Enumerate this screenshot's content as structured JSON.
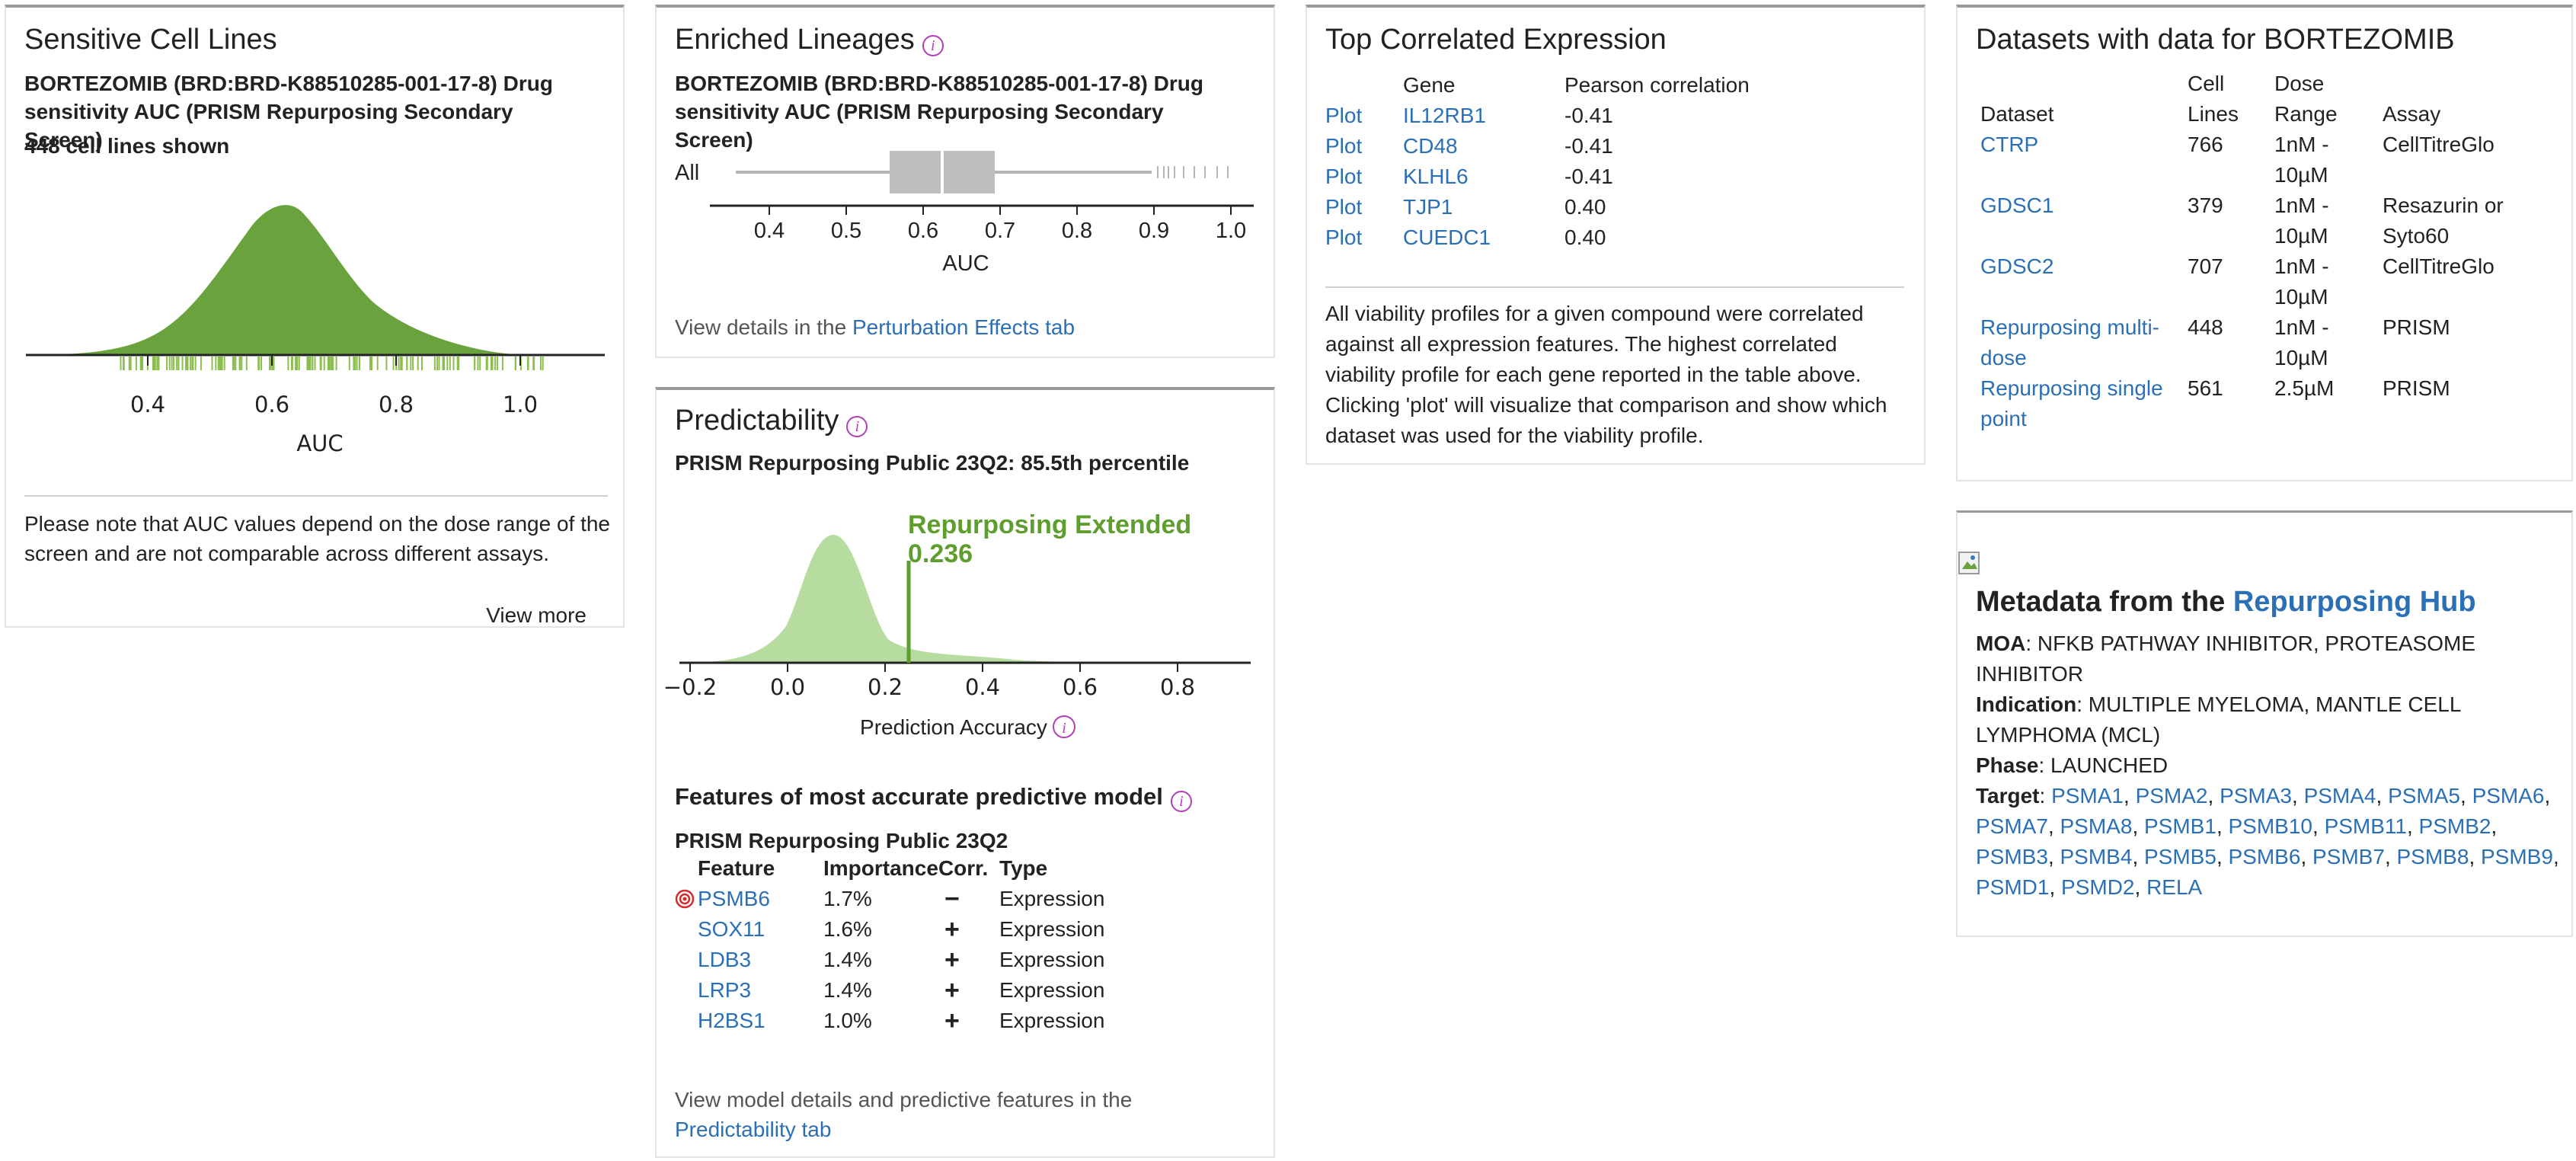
{
  "sensitive": {
    "title": "Sensitive Cell Lines",
    "subtitle": "BORTEZOMIB (BRD:BRD-K88510285-001-17-8) Drug sensitivity AUC (PRISM Repurposing Secondary Screen)",
    "shown": "448 cell lines shown",
    "axis_label": "AUC",
    "ticks": [
      "0.4",
      "0.6",
      "0.8",
      "1.0"
    ],
    "note": "Please note that AUC values depend on the dose range of the screen and are not comparable across different assays.",
    "view_more": "View more",
    "colors": {
      "density": "#6aa33d",
      "rug": "#8cbf4f"
    }
  },
  "lineages": {
    "title": "Enriched Lineages",
    "subtitle": "BORTEZOMIB (BRD:BRD-K88510285-001-17-8) Drug sensitivity AUC (PRISM Repurposing Secondary Screen)",
    "row_label": "All",
    "ticks": [
      "0.4",
      "0.5",
      "0.6",
      "0.7",
      "0.8",
      "0.9",
      "1.0"
    ],
    "axis_label": "AUC",
    "footer_text": "View details in the ",
    "footer_link": "Perturbation Effects tab"
  },
  "predictability": {
    "title": "Predictability",
    "subtitle": "PRISM Repurposing Public 23Q2: 85.5th percentile",
    "marker_label": "Repurposing Extended",
    "marker_value": "0.236",
    "ticks": [
      "−0.2",
      "0.0",
      "0.2",
      "0.4",
      "0.6",
      "0.8"
    ],
    "axis_label": "Prediction Accuracy",
    "features_title": "Features of most accurate predictive model",
    "model_name": "PRISM Repurposing Public 23Q2",
    "columns": [
      "Feature",
      "Importance",
      "Corr.",
      "Type"
    ],
    "rows": [
      {
        "feature": "PSMB6",
        "importance": "1.7%",
        "corr": "−",
        "type": "Expression"
      },
      {
        "feature": "SOX11",
        "importance": "1.6%",
        "corr": "+",
        "type": "Expression"
      },
      {
        "feature": "LDB3",
        "importance": "1.4%",
        "corr": "+",
        "type": "Expression"
      },
      {
        "feature": "LRP3",
        "importance": "1.4%",
        "corr": "+",
        "type": "Expression"
      },
      {
        "feature": "H2BS1",
        "importance": "1.0%",
        "corr": "+",
        "type": "Expression"
      }
    ],
    "footer_text": "View model details and predictive features in the ",
    "footer_link": "Predictability tab"
  },
  "correlated": {
    "title": "Top Correlated Expression",
    "columns": [
      "",
      "Gene",
      "Pearson correlation"
    ],
    "rows": [
      {
        "plot": "Plot",
        "gene": "IL12RB1",
        "corr": "-0.41"
      },
      {
        "plot": "Plot",
        "gene": "CD48",
        "corr": "-0.41"
      },
      {
        "plot": "Plot",
        "gene": "KLHL6",
        "corr": "-0.41"
      },
      {
        "plot": "Plot",
        "gene": "TJP1",
        "corr": "0.40"
      },
      {
        "plot": "Plot",
        "gene": "CUEDC1",
        "corr": "0.40"
      }
    ],
    "note": "All viability profiles for a given compound were correlated against all expression features. The highest correlated viability profile for each gene reported in the table above. Clicking 'plot' will visualize that comparison and show which dataset was used for the viability profile."
  },
  "datasets": {
    "title": "Datasets with data for BORTEZOMIB",
    "columns": [
      "Dataset",
      "Cell Lines",
      "Dose Range",
      "Assay"
    ],
    "rows": [
      {
        "name": "CTRP",
        "cells": "766",
        "dose": "1nM - 10µM",
        "assay": "CellTitreGlo"
      },
      {
        "name": "GDSC1",
        "cells": "379",
        "dose": "1nM - 10µM",
        "assay": "Resazurin or Syto60"
      },
      {
        "name": "GDSC2",
        "cells": "707",
        "dose": "1nM - 10µM",
        "assay": "CellTitreGlo"
      },
      {
        "name": "Repurposing multi-dose",
        "cells": "448",
        "dose": "1nM - 10µM",
        "assay": "PRISM"
      },
      {
        "name": "Repurposing single point",
        "cells": "561",
        "dose": "2.5µM",
        "assay": "PRISM"
      }
    ]
  },
  "metadata": {
    "title_prefix": "Metadata from the ",
    "title_link": "Repurposing Hub",
    "moa_label": "MOA",
    "moa": ": NFKB PATHWAY INHIBITOR, PROTEASOME INHIBITOR",
    "indication_label": "Indication",
    "indication": ": MULTIPLE MYELOMA, MANTLE CELL LYMPHOMA (MCL)",
    "phase_label": "Phase",
    "phase": ": LAUNCHED",
    "target_label": "Target",
    "targets": [
      "PSMA1",
      "PSMA2",
      "PSMA3",
      "PSMA4",
      "PSMA5",
      "PSMA6",
      "PSMA7",
      "PSMA8",
      "PSMB1",
      "PSMB10",
      "PSMB11",
      "PSMB2",
      "PSMB3",
      "PSMB4",
      "PSMB5",
      "PSMB6",
      "PSMB7",
      "PSMB8",
      "PSMB9",
      "PSMD1",
      "PSMD2",
      "RELA"
    ]
  }
}
